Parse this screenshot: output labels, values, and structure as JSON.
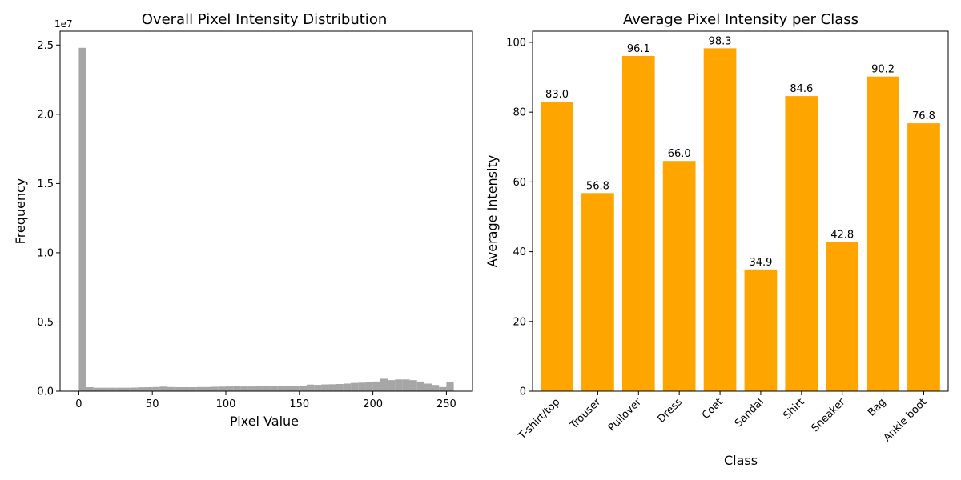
{
  "chart_data": [
    {
      "type": "bar",
      "subtype": "histogram",
      "title": "Overall Pixel Intensity Distribution",
      "xlabel": "Pixel Value",
      "ylabel": "Frequency",
      "offset_text": "1e7",
      "xlim": [
        -12.75,
        267.75
      ],
      "ylim": [
        0,
        26000000
      ],
      "xticks": [
        0,
        50,
        100,
        150,
        200,
        250
      ],
      "xtick_labels": [
        "0",
        "50",
        "100",
        "150",
        "200",
        "250"
      ],
      "yticks": [
        0,
        5000000,
        10000000,
        15000000,
        20000000,
        25000000
      ],
      "ytick_labels": [
        "0.0",
        "0.5",
        "1.0",
        "1.5",
        "2.0",
        "2.5"
      ],
      "grid": false,
      "color": "#a6a6a6",
      "bin_width": 5,
      "bins_start": [
        0,
        5,
        10,
        15,
        20,
        25,
        30,
        35,
        40,
        45,
        50,
        55,
        60,
        65,
        70,
        75,
        80,
        85,
        90,
        95,
        100,
        105,
        110,
        115,
        120,
        125,
        130,
        135,
        140,
        145,
        150,
        155,
        160,
        165,
        170,
        175,
        180,
        185,
        190,
        195,
        200,
        205,
        210,
        215,
        220,
        225,
        230,
        235,
        240,
        245,
        250
      ],
      "values": [
        24800000,
        290000,
        250000,
        250000,
        250000,
        250000,
        250000,
        260000,
        280000,
        290000,
        300000,
        330000,
        300000,
        290000,
        290000,
        290000,
        300000,
        300000,
        320000,
        330000,
        340000,
        390000,
        340000,
        340000,
        350000,
        360000,
        380000,
        390000,
        400000,
        400000,
        410000,
        480000,
        460000,
        490000,
        500000,
        520000,
        550000,
        600000,
        620000,
        650000,
        700000,
        900000,
        800000,
        850000,
        850000,
        800000,
        700000,
        550000,
        450000,
        300000,
        650000
      ]
    },
    {
      "type": "bar",
      "title": "Average Pixel Intensity per Class",
      "xlabel": "Class",
      "ylabel": "Average Intensity",
      "categories": [
        "T-shirt/top",
        "Trouser",
        "Pullover",
        "Dress",
        "Coat",
        "Sandal",
        "Shirt",
        "Sneaker",
        "Bag",
        "Ankle boot"
      ],
      "values": [
        83.0,
        56.8,
        96.1,
        66.0,
        98.3,
        34.9,
        84.6,
        42.8,
        90.2,
        76.8
      ],
      "value_labels": [
        "83.0",
        "56.8",
        "96.1",
        "66.0",
        "98.3",
        "34.9",
        "84.6",
        "42.8",
        "90.2",
        "76.8"
      ],
      "ylim": [
        0,
        103.2
      ],
      "yticks": [
        0,
        20,
        40,
        60,
        80,
        100
      ],
      "ytick_labels": [
        "0",
        "20",
        "40",
        "60",
        "80",
        "100"
      ],
      "grid": false,
      "color": "#ffa500"
    }
  ]
}
